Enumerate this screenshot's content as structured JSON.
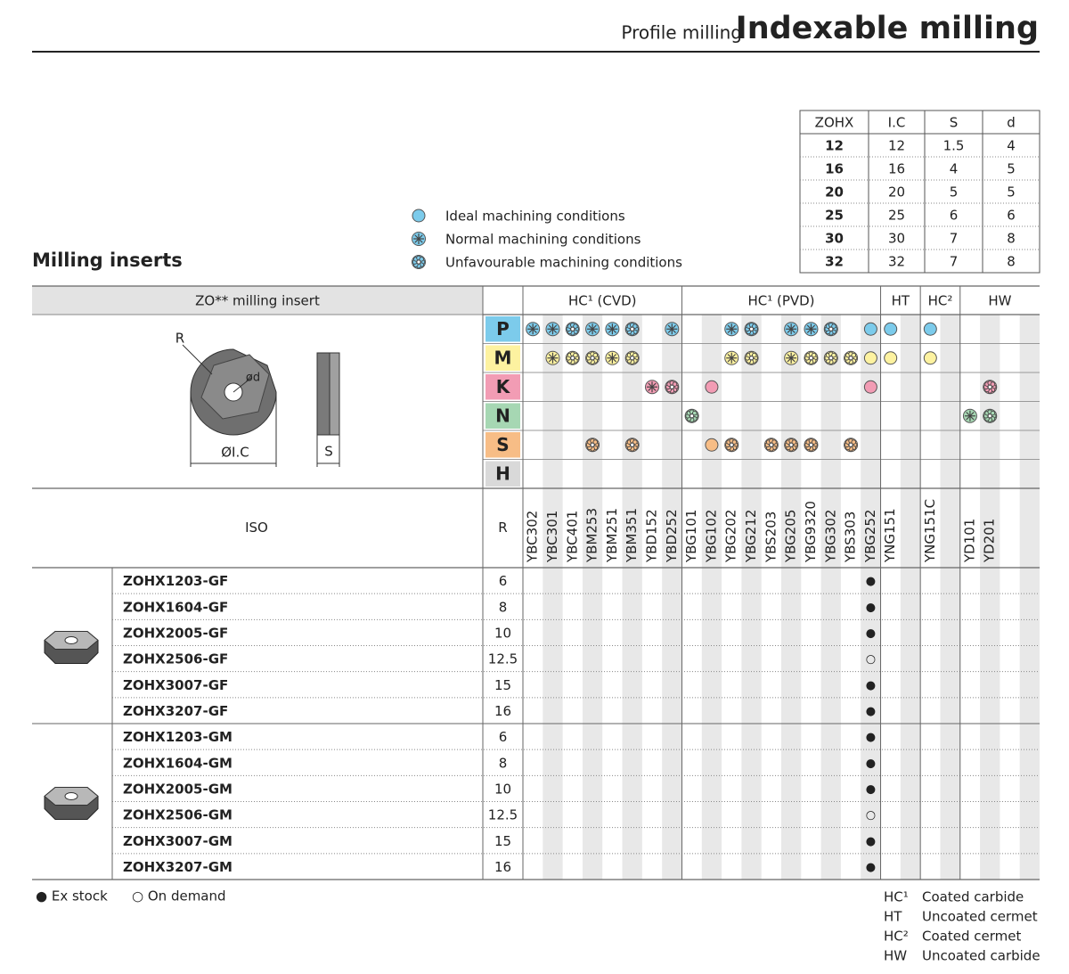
{
  "header": {
    "section": "Profile milling",
    "title": "Indexable milling"
  },
  "dimensions": {
    "columns": [
      "ZOHX",
      "I.C",
      "S",
      "d"
    ],
    "rows": [
      [
        "12",
        "12",
        "1.5",
        "4"
      ],
      [
        "16",
        "16",
        "4",
        "5"
      ],
      [
        "20",
        "20",
        "5",
        "5"
      ],
      [
        "25",
        "25",
        "6",
        "6"
      ],
      [
        "30",
        "30",
        "7",
        "8"
      ],
      [
        "32",
        "32",
        "7",
        "8"
      ]
    ]
  },
  "legend": [
    "Ideal machining conditions",
    "Normal machining conditions",
    "Unfavourable machining conditions"
  ],
  "section_title": "Milling inserts",
  "table": {
    "insert_header": "ZO** milling insert",
    "diagram_labels": {
      "r": "R",
      "d": "ød",
      "ic": "ØI.C",
      "s": "S"
    },
    "group_headers": [
      {
        "label": "HC¹ (CVD)",
        "span": 8
      },
      {
        "label": "HC¹ (PVD)",
        "span": 10
      },
      {
        "label": "HT",
        "span": 2
      },
      {
        "label": "HC²",
        "span": 2
      },
      {
        "label": "HW",
        "span": 4
      }
    ],
    "grades": [
      "YBC302",
      "YBC301",
      "YBC401",
      "YBM253",
      "YBM251",
      "YBM351",
      "YBD152",
      "YBD252",
      "YBG101",
      "YBG102",
      "YBG202",
      "YBG212",
      "YBS203",
      "YBG205",
      "YBG9320",
      "YBG302",
      "YBS303",
      "YBG252",
      "YNG151",
      null,
      "YNG151C",
      null,
      "YD101",
      "YD201",
      null,
      null
    ],
    "materials": [
      {
        "letter": "P",
        "color": "#7ccbeb",
        "applicability": [
          2,
          2,
          3,
          2,
          2,
          3,
          0,
          2,
          0,
          0,
          2,
          3,
          0,
          2,
          2,
          3,
          0,
          1,
          1,
          0,
          1,
          0,
          0,
          0,
          0,
          0
        ]
      },
      {
        "letter": "M",
        "color": "#fdf2a0",
        "applicability": [
          0,
          2,
          3,
          3,
          2,
          3,
          0,
          0,
          0,
          0,
          2,
          3,
          0,
          2,
          3,
          3,
          3,
          1,
          1,
          0,
          1,
          0,
          0,
          0,
          0,
          0
        ]
      },
      {
        "letter": "K",
        "color": "#f29cb4",
        "applicability": [
          0,
          0,
          0,
          0,
          0,
          0,
          2,
          3,
          0,
          1,
          0,
          0,
          0,
          0,
          0,
          0,
          0,
          1,
          0,
          0,
          0,
          0,
          0,
          3,
          0,
          0
        ]
      },
      {
        "letter": "N",
        "color": "#a6d7b3",
        "applicability": [
          0,
          0,
          0,
          0,
          0,
          0,
          0,
          0,
          3,
          0,
          0,
          0,
          0,
          0,
          0,
          0,
          0,
          0,
          0,
          0,
          0,
          0,
          2,
          3,
          0,
          0
        ]
      },
      {
        "letter": "S",
        "color": "#f7bd86",
        "applicability": [
          0,
          0,
          0,
          3,
          0,
          3,
          0,
          0,
          0,
          1,
          3,
          0,
          3,
          3,
          3,
          0,
          3,
          0,
          0,
          0,
          0,
          0,
          0,
          0,
          0,
          0
        ]
      },
      {
        "letter": "H",
        "color": "#d9d9d9",
        "applicability": [
          0,
          0,
          0,
          0,
          0,
          0,
          0,
          0,
          0,
          0,
          0,
          0,
          0,
          0,
          0,
          0,
          0,
          0,
          0,
          0,
          0,
          0,
          0,
          0,
          0,
          0
        ]
      }
    ],
    "iso_header": "ISO",
    "r_header": "R",
    "stock_column": 17,
    "groups": [
      {
        "rows": [
          {
            "designation": "ZOHX1203-GF",
            "r": "6",
            "stock": "●"
          },
          {
            "designation": "ZOHX1604-GF",
            "r": "8",
            "stock": "●"
          },
          {
            "designation": "ZOHX2005-GF",
            "r": "10",
            "stock": "●"
          },
          {
            "designation": "ZOHX2506-GF",
            "r": "12.5",
            "stock": "○"
          },
          {
            "designation": "ZOHX3007-GF",
            "r": "15",
            "stock": "●"
          },
          {
            "designation": "ZOHX3207-GF",
            "r": "16",
            "stock": "●"
          }
        ]
      },
      {
        "rows": [
          {
            "designation": "ZOHX1203-GM",
            "r": "6",
            "stock": "●"
          },
          {
            "designation": "ZOHX1604-GM",
            "r": "8",
            "stock": "●"
          },
          {
            "designation": "ZOHX2005-GM",
            "r": "10",
            "stock": "●"
          },
          {
            "designation": "ZOHX2506-GM",
            "r": "12.5",
            "stock": "○"
          },
          {
            "designation": "ZOHX3007-GM",
            "r": "15",
            "stock": "●"
          },
          {
            "designation": "ZOHX3207-GM",
            "r": "16",
            "stock": "●"
          }
        ]
      }
    ]
  },
  "footer": {
    "stock_legend": [
      "● Ex stock",
      "○ On demand"
    ],
    "abbreviations": [
      {
        "code": "HC¹",
        "text": "Coated carbide"
      },
      {
        "code": "HT",
        "text": "Uncoated cermet"
      },
      {
        "code": "HC²",
        "text": "Coated cermet"
      },
      {
        "code": "HW",
        "text": "Uncoated carbide"
      }
    ]
  }
}
